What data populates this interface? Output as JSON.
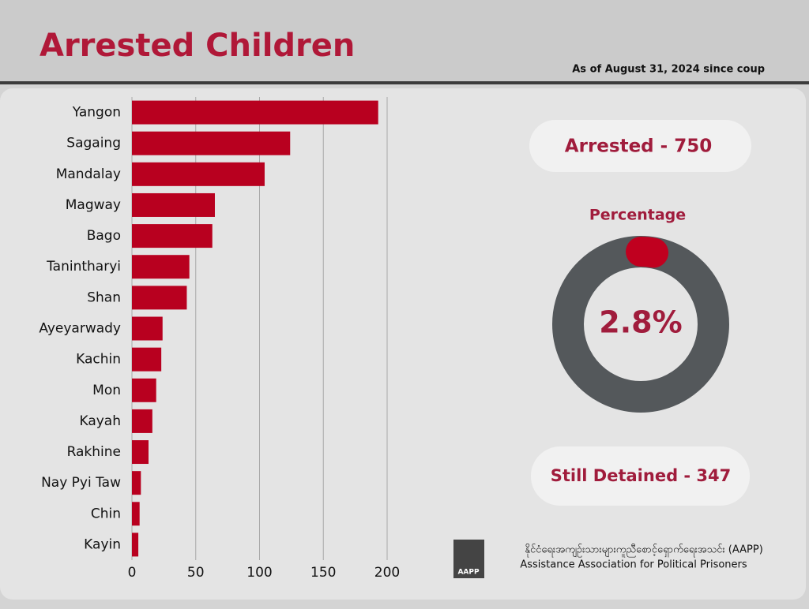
{
  "header": {
    "title": "Arrested Children",
    "note": "As of August 31, 2024 since coup"
  },
  "stats": {
    "arrested": "Arrested - 750",
    "still_detained": "Still Detained - 347"
  },
  "chart_data": [
    {
      "type": "bar",
      "orientation": "horizontal",
      "categories": [
        "Yangon",
        "Sagaing",
        "Mandalay",
        "Magway",
        "Bago",
        "Tanintharyi",
        "Shan",
        "Ayeyarwady",
        "Kachin",
        "Mon",
        "Kayah",
        "Rakhine",
        "Nay Pyi Taw",
        "Chin",
        "Kayin"
      ],
      "values": [
        193,
        124,
        104,
        65,
        63,
        45,
        43,
        24,
        23,
        19,
        16,
        13,
        7,
        6,
        5
      ],
      "color": "#b8001f",
      "xlim": [
        0,
        200
      ],
      "xticks": [
        0,
        50,
        100,
        150,
        200
      ],
      "grid": true
    },
    {
      "type": "donut",
      "title": "Percentage",
      "values": [
        2.8
      ],
      "value_labels": [
        "2.8%"
      ],
      "color": "#c0001f",
      "track_color": "#54585b"
    }
  ],
  "footer": {
    "org_native": "နိုင်ငံရေးအကျဉ်းသားများကူညီစောင့်ရှောက်ရေးအသင်း (AAPP)",
    "org_english": "Assistance Association for Political Prisoners",
    "logo": "AAPP"
  }
}
